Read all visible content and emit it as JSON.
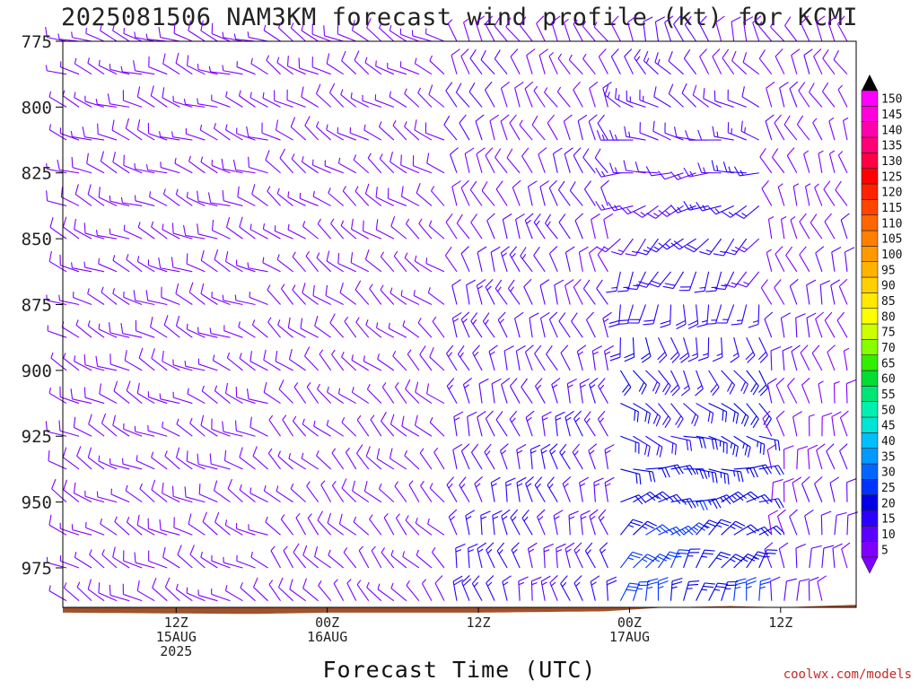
{
  "chart_data": {
    "type": "wind-barb-time-height",
    "title": "2025081506 NAM3KM forecast wind profile (kt) for KCMI",
    "xlabel": "Forecast Time (UTC)",
    "ylabel": "",
    "y_scale": "pressure-inverted",
    "ylim": [
      775,
      990
    ],
    "y_ticks": [
      775,
      800,
      825,
      850,
      875,
      900,
      925,
      950,
      975
    ],
    "x_range_hours": [
      -3,
      60
    ],
    "x_ticks": [
      {
        "hour": 6,
        "labels": [
          "12Z",
          "15AUG",
          "2025"
        ]
      },
      {
        "hour": 18,
        "labels": [
          "00Z",
          "16AUG"
        ]
      },
      {
        "hour": 30,
        "labels": [
          "12Z"
        ]
      },
      {
        "hour": 42,
        "labels": [
          "00Z",
          "17AUG"
        ]
      },
      {
        "hour": 54,
        "labels": [
          "12Z"
        ]
      }
    ],
    "levels_mb": [
      775,
      787.5,
      800,
      812.5,
      825,
      837.5,
      850,
      862.5,
      875,
      887.5,
      900,
      912.5,
      925,
      937.5,
      950,
      962.5,
      975,
      987.5
    ],
    "hours": [
      -3,
      -2,
      -1,
      0,
      1,
      2,
      3,
      4,
      5,
      6,
      7,
      8,
      9,
      10,
      11,
      12,
      13,
      14,
      15,
      16,
      17,
      18,
      19,
      20,
      21,
      22,
      23,
      24,
      25,
      26,
      27,
      28,
      29,
      30,
      31,
      32,
      33,
      34,
      35,
      36,
      37,
      38,
      39,
      40,
      41,
      42,
      43,
      44,
      45,
      46,
      47,
      48,
      49,
      50,
      51,
      52,
      53,
      54,
      55,
      56,
      57,
      58,
      59
    ],
    "wind_model": {
      "note": "barbs at each level/hour; direction from, speed in kt",
      "ranges": [
        {
          "hours": [
            -3,
            13
          ],
          "dir_low": 300,
          "dir_high": 290,
          "speed_low": 8,
          "speed_high": 7
        },
        {
          "hours": [
            13,
            27
          ],
          "dir_low": 320,
          "dir_high": 300,
          "speed_low": 6,
          "speed_high": 7
        },
        {
          "hours": [
            27,
            40
          ],
          "dir_low": 345,
          "dir_high": 330,
          "speed_low": 16,
          "speed_high": 8
        },
        {
          "hours": [
            40,
            52
          ],
          "dir_low": 10,
          "dir_high": 340,
          "speed_low": 26,
          "speed_high": 10
        },
        {
          "hours": [
            52,
            60
          ],
          "dir_low": 355,
          "dir_high": 330,
          "speed_low": 10,
          "speed_high": 8
        }
      ]
    },
    "surface_pressure": [
      {
        "hour": -3,
        "mb": 992
      },
      {
        "hour": 12,
        "mb": 992.5
      },
      {
        "hour": 18,
        "mb": 992
      },
      {
        "hour": 30,
        "mb": 992
      },
      {
        "hour": 40,
        "mb": 991.5
      },
      {
        "hour": 45,
        "mb": 990
      },
      {
        "hour": 50,
        "mb": 989.5
      },
      {
        "hour": 54,
        "mb": 990
      },
      {
        "hour": 60,
        "mb": 989
      }
    ],
    "colorbar": {
      "label_values": [
        5,
        10,
        15,
        20,
        25,
        30,
        35,
        40,
        45,
        50,
        55,
        60,
        65,
        70,
        75,
        80,
        85,
        90,
        95,
        100,
        105,
        110,
        115,
        120,
        125,
        130,
        135,
        140,
        145,
        150
      ],
      "colors": [
        "#7f00ff",
        "#5a00ff",
        "#2a00ff",
        "#0000e6",
        "#0033ff",
        "#0066ff",
        "#0099ff",
        "#00bfff",
        "#00e5d5",
        "#00f0b0",
        "#00e676",
        "#00dd33",
        "#33ee00",
        "#88ff00",
        "#ccff00",
        "#ffff00",
        "#ffea00",
        "#ffd000",
        "#ffb300",
        "#ff9900",
        "#ff8000",
        "#ff6600",
        "#ff4400",
        "#ff2200",
        "#ff0000",
        "#ff0044",
        "#ff0077",
        "#ff00aa",
        "#ff00dd",
        "#ff00ff"
      ],
      "arrow_low_color": "#7f00ff",
      "arrow_high_color": "#000000"
    },
    "ground_color": "#a0522d"
  },
  "credit": "coolwx.com/models"
}
